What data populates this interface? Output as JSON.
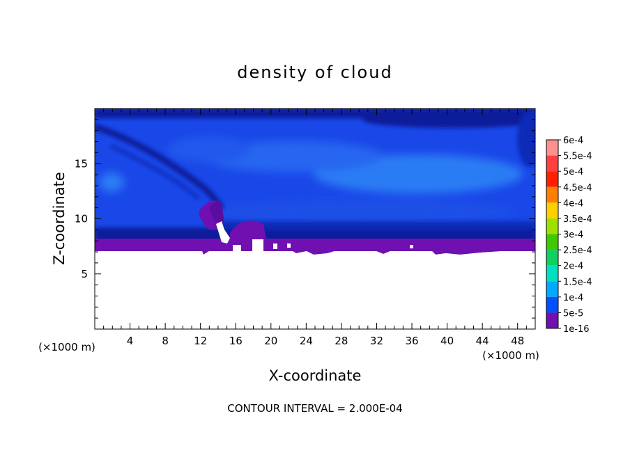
{
  "chart_data": {
    "type": "heatmap",
    "title": "density of cloud",
    "xlabel": "X-coordinate",
    "ylabel": "Z-coordinate",
    "x_unit": "(×1000 m)",
    "y_unit": "(×1000 m)",
    "xlim": [
      0,
      50
    ],
    "ylim": [
      0,
      20
    ],
    "x_ticks": [
      4,
      8,
      12,
      16,
      20,
      24,
      28,
      32,
      36,
      40,
      44,
      48
    ],
    "y_ticks": [
      5,
      10,
      15
    ],
    "footer": "CONTOUR INTERVAL = 2.000E-04",
    "colorbar": {
      "labels": [
        "6e-4",
        "5.5e-4",
        "5e-4",
        "4.5e-4",
        "4e-4",
        "3.5e-4",
        "3e-4",
        "2.5e-4",
        "2e-4",
        "1.5e-4",
        "1e-4",
        "5e-5",
        "1e-16"
      ],
      "colors": [
        "#ff9090",
        "#ff4040",
        "#ff2000",
        "#ff8000",
        "#ffd000",
        "#a0e000",
        "#40c800",
        "#10d060",
        "#00e0c0",
        "#00a8ff",
        "#0050ff",
        "#0010b0",
        "#7010b0"
      ]
    },
    "field": {
      "cloud_base_z": 7.2,
      "purple_layer_top_z": 8.0,
      "dark_band_z": 9.0,
      "main_layer_levels": [
        "1e-4",
        "1.5e-4"
      ],
      "max_level": "1.5e-4"
    }
  }
}
